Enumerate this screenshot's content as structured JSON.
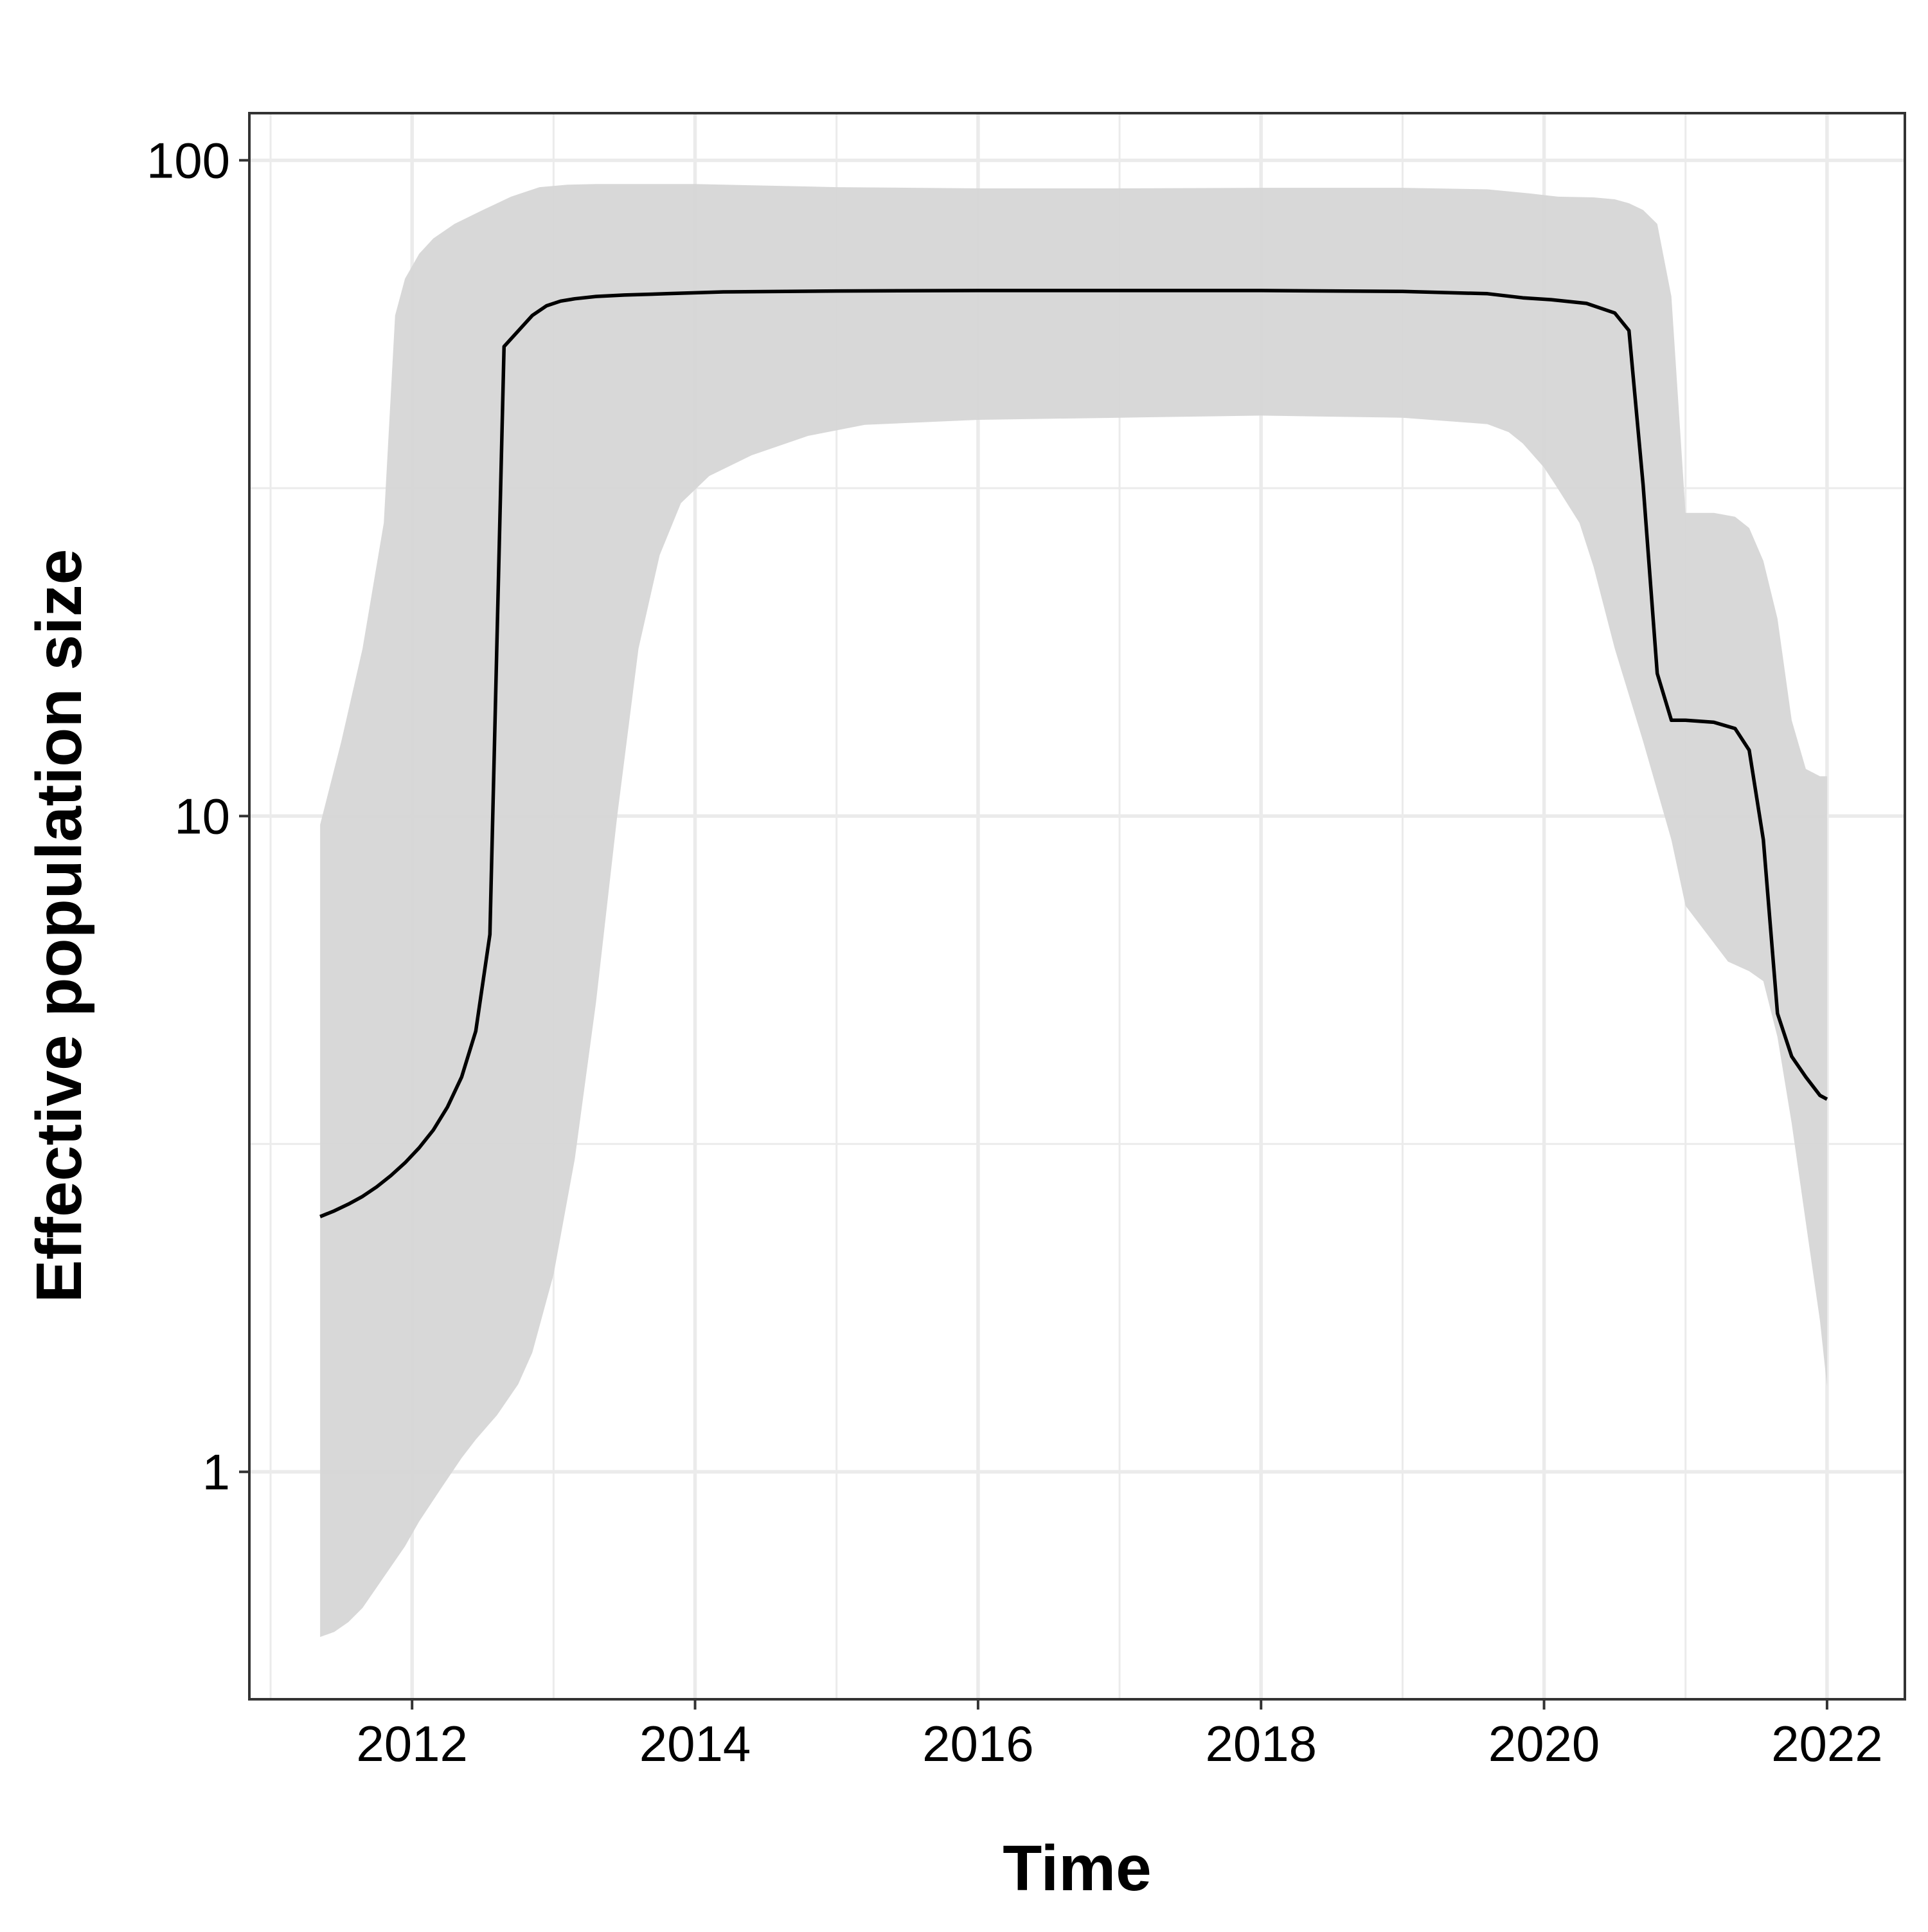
{
  "chart_data": {
    "type": "area",
    "title": "",
    "xlabel": "Time",
    "ylabel": "Effective population size",
    "y_scale": "log10",
    "xlim": [
      2010.85,
      2022.55
    ],
    "ylim": [
      0.45,
      118
    ],
    "x_ticks": [
      2012,
      2014,
      2016,
      2018,
      2020,
      2022
    ],
    "x_tick_labels": [
      "2012",
      "2014",
      "2016",
      "2018",
      "2020",
      "2022"
    ],
    "y_ticks": [
      1,
      10,
      100
    ],
    "y_tick_labels": [
      "1",
      "10",
      "100"
    ],
    "grid": true,
    "legend": "none",
    "colors": {
      "median_line": "#000000",
      "ci_band": "#d6d6d6",
      "grid": "#ebebeb",
      "panel_border": "#333333"
    },
    "series": [
      {
        "role": "median",
        "x": [
          2011.35,
          2011.45,
          2011.55,
          2011.65,
          2011.75,
          2011.85,
          2011.95,
          2012.05,
          2012.15,
          2012.25,
          2012.35,
          2012.45,
          2012.55,
          2012.65,
          2012.85,
          2012.95,
          2013.05,
          2013.15,
          2013.3,
          2013.5,
          2013.8,
          2014.2,
          2015.0,
          2016.0,
          2017.0,
          2018.0,
          2019.0,
          2019.6,
          2019.85,
          2020.05,
          2020.3,
          2020.5,
          2020.6,
          2020.7,
          2020.8,
          2020.9,
          2021.0,
          2021.2,
          2021.35,
          2021.45,
          2021.55,
          2021.65,
          2021.75,
          2021.85,
          2021.95,
          2022.0
        ],
        "y": [
          2.45,
          2.5,
          2.56,
          2.63,
          2.72,
          2.83,
          2.96,
          3.12,
          3.32,
          3.6,
          4.0,
          4.7,
          6.6,
          52,
          58,
          60,
          61,
          61.5,
          62,
          62.3,
          62.6,
          63,
          63.2,
          63.3,
          63.3,
          63.3,
          63.1,
          62.6,
          61.7,
          61.3,
          60.5,
          58.5,
          55,
          32,
          16.5,
          14,
          14,
          13.9,
          13.6,
          12.6,
          9.2,
          5.0,
          4.3,
          4.0,
          3.75,
          3.7
        ]
      },
      {
        "role": "upper_95",
        "x": [
          2011.35,
          2011.5,
          2011.65,
          2011.8,
          2011.88,
          2011.95,
          2012.05,
          2012.15,
          2012.3,
          2012.5,
          2012.7,
          2012.9,
          2013.1,
          2013.3,
          2013.6,
          2014.0,
          2015.0,
          2016.0,
          2017.0,
          2018.0,
          2019.0,
          2019.6,
          2019.9,
          2020.1,
          2020.35,
          2020.5,
          2020.6,
          2020.7,
          2020.8,
          2020.9,
          2021.0,
          2021.2,
          2021.35,
          2021.45,
          2021.55,
          2021.65,
          2021.75,
          2021.85,
          2021.95,
          2022.0
        ],
        "y": [
          9.7,
          13,
          18,
          28,
          58,
          66,
          72,
          76,
          80,
          84,
          88,
          91,
          91.8,
          92,
          92,
          92,
          91,
          90.6,
          90.6,
          90.8,
          90.8,
          90.3,
          89,
          88,
          87.8,
          87.2,
          86,
          84,
          80,
          62,
          29,
          29,
          28.6,
          27.5,
          24.5,
          20,
          14,
          11.8,
          11.5,
          11.5
        ]
      },
      {
        "role": "lower_95",
        "x": [
          2011.35,
          2011.45,
          2011.55,
          2011.65,
          2011.95,
          2012.05,
          2012.2,
          2012.35,
          2012.45,
          2012.6,
          2012.75,
          2012.85,
          2013.0,
          2013.15,
          2013.3,
          2013.45,
          2013.6,
          2013.75,
          2013.9,
          2014.1,
          2014.4,
          2014.8,
          2015.2,
          2016.0,
          2017.0,
          2018.0,
          2019.0,
          2019.6,
          2019.75,
          2019.85,
          2020.0,
          2020.1,
          2020.25,
          2020.35,
          2020.5,
          2020.7,
          2020.9,
          2021.0,
          2021.3,
          2021.45,
          2021.55,
          2021.65,
          2021.75,
          2021.85,
          2021.95,
          2022.0
        ],
        "y": [
          0.56,
          0.57,
          0.59,
          0.62,
          0.77,
          0.84,
          0.94,
          1.05,
          1.12,
          1.22,
          1.36,
          1.52,
          2.0,
          3.0,
          5.2,
          10,
          18,
          25,
          30,
          33,
          35.5,
          38,
          39.5,
          40.2,
          40.5,
          40.8,
          40.5,
          39.6,
          38.5,
          37,
          34,
          31.5,
          28,
          24,
          18,
          13,
          9.2,
          7.3,
          6.0,
          5.8,
          5.6,
          4.6,
          3.4,
          2.4,
          1.7,
          1.35
        ]
      }
    ]
  }
}
